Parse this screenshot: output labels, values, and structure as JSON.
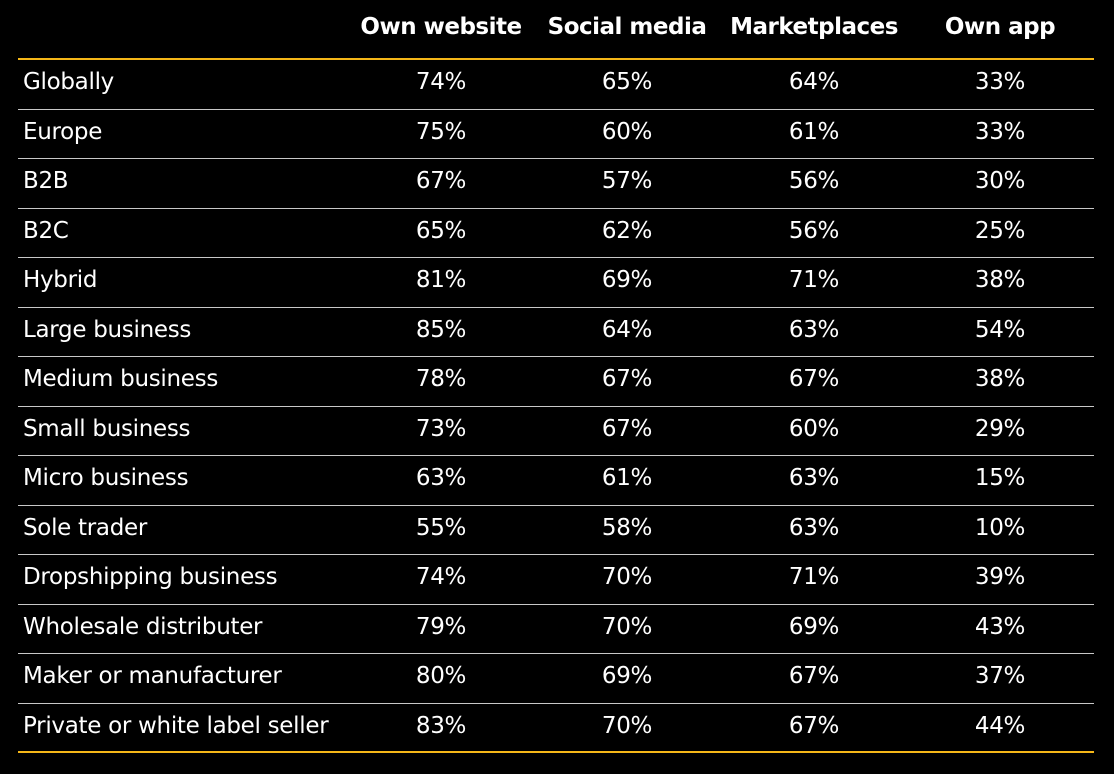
{
  "chart_data": {
    "type": "table",
    "columns": [
      "Own website",
      "Social media",
      "Marketplaces",
      "Own app"
    ],
    "rows": [
      {
        "label": "Globally",
        "values": [
          "74%",
          "65%",
          "64%",
          "33%"
        ]
      },
      {
        "label": "Europe",
        "values": [
          "75%",
          "60%",
          "61%",
          "33%"
        ]
      },
      {
        "label": "B2B",
        "values": [
          "67%",
          "57%",
          "56%",
          "30%"
        ]
      },
      {
        "label": "B2C",
        "values": [
          "65%",
          "62%",
          "56%",
          "25%"
        ]
      },
      {
        "label": "Hybrid",
        "values": [
          "81%",
          "69%",
          "71%",
          "38%"
        ]
      },
      {
        "label": "Large business",
        "values": [
          "85%",
          "64%",
          "63%",
          "54%"
        ]
      },
      {
        "label": "Medium business",
        "values": [
          "78%",
          "67%",
          "67%",
          "38%"
        ]
      },
      {
        "label": "Small business",
        "values": [
          "73%",
          "67%",
          "60%",
          "29%"
        ]
      },
      {
        "label": "Micro business",
        "values": [
          "63%",
          "61%",
          "63%",
          "15%"
        ]
      },
      {
        "label": "Sole trader",
        "values": [
          "55%",
          "58%",
          "63%",
          "10%"
        ]
      },
      {
        "label": "Dropshipping business",
        "values": [
          "74%",
          "70%",
          "71%",
          "39%"
        ]
      },
      {
        "label": "Wholesale distributer",
        "values": [
          "79%",
          "70%",
          "69%",
          "43%"
        ]
      },
      {
        "label": "Maker or manufacturer",
        "values": [
          "80%",
          "69%",
          "67%",
          "37%"
        ]
      },
      {
        "label": "Private or white label seller",
        "values": [
          "83%",
          "70%",
          "67%",
          "44%"
        ]
      }
    ]
  },
  "colors": {
    "background": "#000000",
    "text": "#ffffff",
    "accent_rule": "#f5b718",
    "row_divider": "#c8c8c8"
  }
}
